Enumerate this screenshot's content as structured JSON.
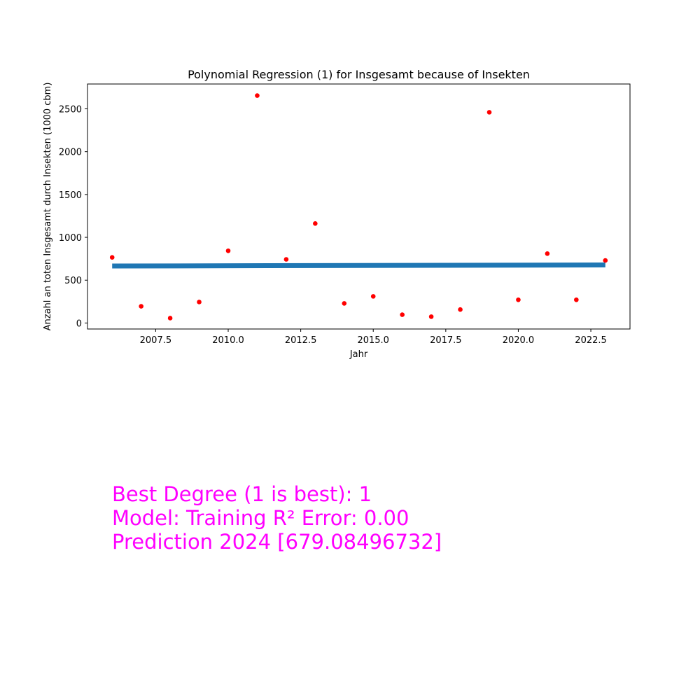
{
  "chart_data": {
    "type": "scatter",
    "title": "Polynomial Regression (1) for Insgesamt because of Insekten",
    "xlabel": "Jahr",
    "ylabel": "Anzahl an toten Insgesamt durch Insekten (1000 cbm)",
    "xlim": [
      2005.15,
      2023.85
    ],
    "ylim": [
      -70,
      2790
    ],
    "x_ticks": [
      2007.5,
      2010.0,
      2012.5,
      2015.0,
      2017.5,
      2020.0,
      2022.5
    ],
    "x_tick_labels": [
      "2007.5",
      "2010.0",
      "2012.5",
      "2015.0",
      "2017.5",
      "2020.0",
      "2022.5"
    ],
    "y_ticks": [
      0,
      500,
      1000,
      1500,
      2000,
      2500
    ],
    "y_tick_labels": [
      "0",
      "500",
      "1000",
      "1500",
      "2000",
      "2500"
    ],
    "grid": false,
    "series": [
      {
        "kind": "scatter",
        "color": "#ff0000",
        "x": [
          2006,
          2007,
          2008,
          2009,
          2010,
          2011,
          2012,
          2013,
          2014,
          2015,
          2016,
          2017,
          2018,
          2019,
          2020,
          2021,
          2022,
          2023
        ],
        "y": [
          766,
          195,
          57,
          245,
          843,
          2655,
          743,
          1161,
          229,
          311,
          97,
          74,
          157,
          2460,
          271,
          810,
          271,
          730
        ]
      },
      {
        "kind": "line",
        "color": "#1f77b4",
        "x": [
          2006,
          2023
        ],
        "y": [
          665,
          678
        ]
      }
    ]
  },
  "annotations": {
    "color": "#ff00ff",
    "line1": "Best Degree (1 is best): 1",
    "line2": "Model: Training R² Error: 0.00",
    "line3": "Prediction 2024 [679.08496732]"
  }
}
